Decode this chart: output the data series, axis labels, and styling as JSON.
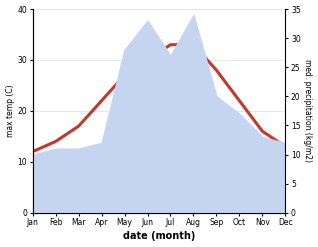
{
  "months": [
    "Jan",
    "Feb",
    "Mar",
    "Apr",
    "May",
    "Jun",
    "Jul",
    "Aug",
    "Sep",
    "Oct",
    "Nov",
    "Dec"
  ],
  "temp": [
    12,
    14,
    17,
    22,
    27,
    30,
    33,
    33,
    28,
    22,
    16,
    13
  ],
  "precip": [
    10,
    11,
    11,
    12,
    28,
    33,
    27,
    34,
    20,
    17,
    13,
    12
  ],
  "temp_color": "#c0392b",
  "precip_color": "#c5d5f0",
  "temp_ylim": [
    0,
    40
  ],
  "precip_ylim": [
    0,
    35
  ],
  "temp_yticks": [
    0,
    10,
    20,
    30,
    40
  ],
  "precip_yticks": [
    0,
    5,
    10,
    15,
    20,
    25,
    30,
    35
  ],
  "xlabel": "date (month)",
  "ylabel_left": "max temp (C)",
  "ylabel_right": "med. precipitation (kg/m2)",
  "bg_color": "#ffffff",
  "line_width": 2.2
}
